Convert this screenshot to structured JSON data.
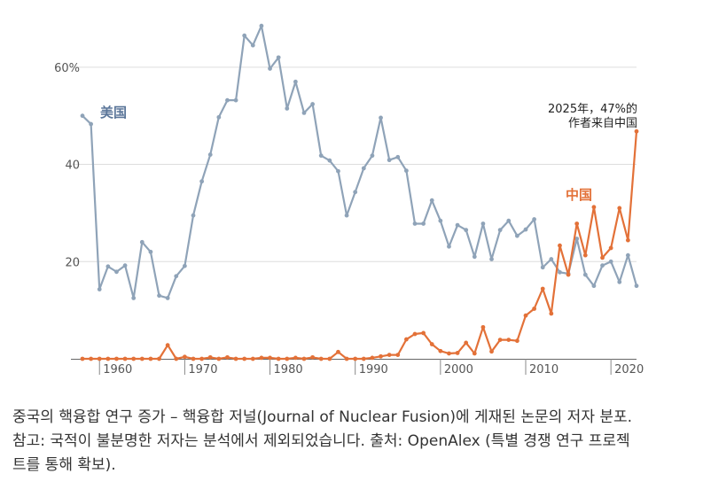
{
  "chart_data": {
    "type": "line",
    "title": "",
    "xlabel": "",
    "ylabel": "",
    "xlim": [
      1958,
      2024
    ],
    "ylim": [
      0,
      72
    ],
    "yticks": [
      20,
      40,
      60
    ],
    "ytick_labels": [
      "20",
      "40",
      "60%"
    ],
    "xticks": [
      1960,
      1970,
      1980,
      1990,
      2000,
      2010,
      2020
    ],
    "xtick_labels": [
      "1960",
      "1970",
      "1980",
      "1990",
      "2000",
      "2010",
      "2020"
    ],
    "grid": "horizontal",
    "annotation": {
      "lines": [
        "2025年，47%的",
        "作者来自中国"
      ]
    },
    "series": [
      {
        "name": "美国",
        "color": "#8fa3b8",
        "label_color": "#5b7699",
        "points": [
          [
            1958,
            50.0
          ],
          [
            1959,
            48.3
          ],
          [
            1960,
            14.3
          ],
          [
            1961,
            19.0
          ],
          [
            1962,
            17.9
          ],
          [
            1963,
            19.2
          ],
          [
            1964,
            12.5
          ],
          [
            1965,
            24.0
          ],
          [
            1966,
            22.0
          ],
          [
            1967,
            13.0
          ],
          [
            1968,
            12.5
          ],
          [
            1969,
            17.0
          ],
          [
            1970,
            19.1
          ],
          [
            1971,
            29.5
          ],
          [
            1972,
            36.5
          ],
          [
            1973,
            42.0
          ],
          [
            1974,
            49.7
          ],
          [
            1975,
            53.2
          ],
          [
            1976,
            53.2
          ],
          [
            1977,
            66.5
          ],
          [
            1978,
            64.5
          ],
          [
            1979,
            68.5
          ],
          [
            1980,
            59.7
          ],
          [
            1981,
            62.0
          ],
          [
            1982,
            51.5
          ],
          [
            1983,
            57.0
          ],
          [
            1984,
            50.6
          ],
          [
            1985,
            52.4
          ],
          [
            1986,
            41.8
          ],
          [
            1987,
            40.8
          ],
          [
            1988,
            38.6
          ],
          [
            1989,
            29.5
          ],
          [
            1990,
            34.3
          ],
          [
            1991,
            39.2
          ],
          [
            1992,
            41.8
          ],
          [
            1993,
            49.6
          ],
          [
            1994,
            40.9
          ],
          [
            1995,
            41.5
          ],
          [
            1996,
            38.7
          ],
          [
            1997,
            27.8
          ],
          [
            1998,
            27.8
          ],
          [
            1999,
            32.6
          ],
          [
            2000,
            28.4
          ],
          [
            2001,
            23.1
          ],
          [
            2002,
            27.5
          ],
          [
            2003,
            26.5
          ],
          [
            2004,
            21.0
          ],
          [
            2005,
            27.8
          ],
          [
            2006,
            20.5
          ],
          [
            2007,
            26.5
          ],
          [
            2008,
            28.4
          ],
          [
            2009,
            25.3
          ],
          [
            2010,
            26.6
          ],
          [
            2011,
            28.7
          ],
          [
            2012,
            18.8
          ],
          [
            2013,
            20.5
          ],
          [
            2014,
            17.8
          ],
          [
            2015,
            17.5
          ],
          [
            2016,
            24.7
          ],
          [
            2017,
            17.3
          ],
          [
            2018,
            15.0
          ],
          [
            2019,
            19.2
          ],
          [
            2020,
            20.0
          ],
          [
            2021,
            15.8
          ],
          [
            2022,
            21.3
          ],
          [
            2023,
            15.0
          ]
        ]
      },
      {
        "name": "中国",
        "color": "#e37138",
        "label_color": "#e37138",
        "points": [
          [
            1958,
            0.0
          ],
          [
            1959,
            0.0
          ],
          [
            1960,
            0.0
          ],
          [
            1961,
            0.0
          ],
          [
            1962,
            0.0
          ],
          [
            1963,
            0.0
          ],
          [
            1964,
            0.0
          ],
          [
            1965,
            0.0
          ],
          [
            1966,
            0.0
          ],
          [
            1967,
            0.0
          ],
          [
            1968,
            2.8
          ],
          [
            1969,
            0.0
          ],
          [
            1970,
            0.4
          ],
          [
            1971,
            0.0
          ],
          [
            1972,
            0.0
          ],
          [
            1973,
            0.3
          ],
          [
            1974,
            0.0
          ],
          [
            1975,
            0.3
          ],
          [
            1976,
            0.0
          ],
          [
            1977,
            0.0
          ],
          [
            1978,
            0.0
          ],
          [
            1979,
            0.2
          ],
          [
            1980,
            0.2
          ],
          [
            1981,
            0.0
          ],
          [
            1982,
            0.0
          ],
          [
            1983,
            0.2
          ],
          [
            1984,
            0.0
          ],
          [
            1985,
            0.3
          ],
          [
            1986,
            0.0
          ],
          [
            1987,
            0.0
          ],
          [
            1988,
            1.4
          ],
          [
            1989,
            0.0
          ],
          [
            1990,
            0.0
          ],
          [
            1991,
            0.0
          ],
          [
            1992,
            0.2
          ],
          [
            1993,
            0.5
          ],
          [
            1994,
            0.8
          ],
          [
            1995,
            0.8
          ],
          [
            1996,
            4.0
          ],
          [
            1997,
            5.1
          ],
          [
            1998,
            5.3
          ],
          [
            1999,
            3.0
          ],
          [
            2000,
            1.6
          ],
          [
            2001,
            1.1
          ],
          [
            2002,
            1.2
          ],
          [
            2003,
            3.3
          ],
          [
            2004,
            1.1
          ],
          [
            2005,
            6.5
          ],
          [
            2006,
            1.5
          ],
          [
            2007,
            3.9
          ],
          [
            2008,
            3.9
          ],
          [
            2009,
            3.7
          ],
          [
            2010,
            8.9
          ],
          [
            2011,
            10.3
          ],
          [
            2012,
            14.4
          ],
          [
            2013,
            9.3
          ],
          [
            2014,
            23.3
          ],
          [
            2015,
            17.3
          ],
          [
            2016,
            27.8
          ],
          [
            2017,
            21.3
          ],
          [
            2018,
            31.2
          ],
          [
            2019,
            20.8
          ],
          [
            2020,
            22.8
          ],
          [
            2021,
            31.0
          ],
          [
            2022,
            24.4
          ],
          [
            2023,
            46.8
          ]
        ]
      }
    ]
  },
  "caption": {
    "line1": "중국의 핵융합 연구 증가 – 핵융합 저널(Journal of Nuclear Fusion)에 게재된 논문의 저자 분포.",
    "line2": "참고: 국적이 불분명한 저자는 분석에서 제외되었습니다. 출처: OpenAlex (특별 경쟁 연구 프로젝",
    "line3": "트를 통해 확보)."
  }
}
